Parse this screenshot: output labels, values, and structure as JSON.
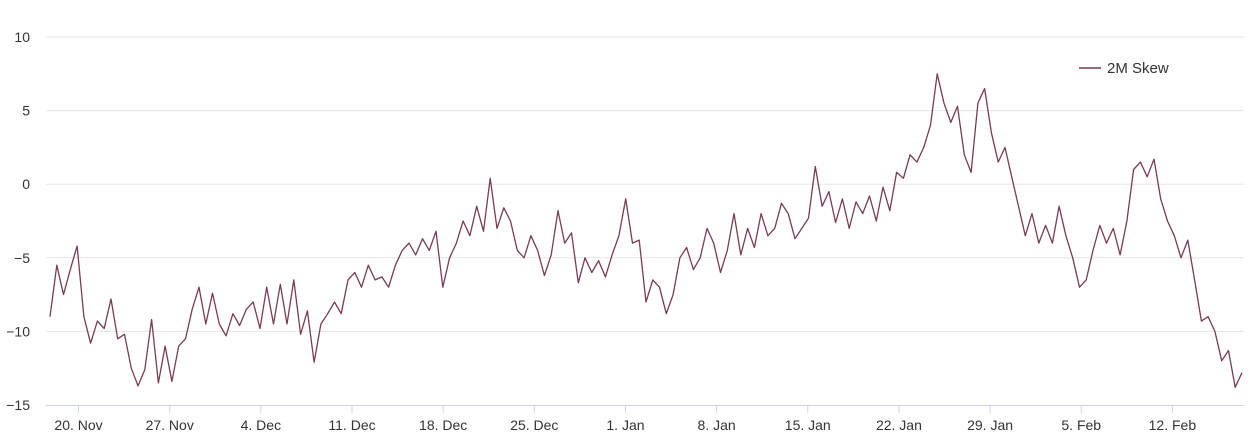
{
  "chart_data": {
    "type": "line",
    "title": "",
    "xlabel": "",
    "ylabel": "",
    "x_start": "2023-11-18",
    "x_end": "2024-02-17",
    "ylim": [
      -15,
      10
    ],
    "yticks": [
      {
        "value": 10,
        "label": "10"
      },
      {
        "value": 5,
        "label": "5"
      },
      {
        "value": 0,
        "label": "0"
      },
      {
        "value": -5,
        "label": "−5"
      },
      {
        "value": -10,
        "label": "−10"
      },
      {
        "value": -15,
        "label": "−15"
      }
    ],
    "xticks": [
      {
        "date": "2023-11-20",
        "label": "20. Nov"
      },
      {
        "date": "2023-11-27",
        "label": "27. Nov"
      },
      {
        "date": "2023-12-04",
        "label": "4. Dec"
      },
      {
        "date": "2023-12-11",
        "label": "11. Dec"
      },
      {
        "date": "2023-12-18",
        "label": "18. Dec"
      },
      {
        "date": "2023-12-25",
        "label": "25. Dec"
      },
      {
        "date": "2024-01-01",
        "label": "1. Jan"
      },
      {
        "date": "2024-01-08",
        "label": "8. Jan"
      },
      {
        "date": "2024-01-15",
        "label": "15. Jan"
      },
      {
        "date": "2024-01-22",
        "label": "22. Jan"
      },
      {
        "date": "2024-01-29",
        "label": "29. Jan"
      },
      {
        "date": "2024-02-05",
        "label": "5. Feb"
      },
      {
        "date": "2024-02-12",
        "label": "12. Feb"
      }
    ],
    "grid": true,
    "legend": {
      "position": "top-right"
    },
    "series": [
      {
        "name": "2M Skew",
        "color": "#7a3b55",
        "points": [
          [
            "2023-11-18",
            -9.0
          ],
          [
            "2023-11-19",
            -5.5
          ],
          [
            "2023-11-19",
            -7.5
          ],
          [
            "2023-11-20",
            -5.8
          ],
          [
            "2023-11-20",
            -4.2
          ],
          [
            "2023-11-21",
            -9.0
          ],
          [
            "2023-11-22",
            -10.8
          ],
          [
            "2023-11-22",
            -9.3
          ],
          [
            "2023-11-23",
            -9.8
          ],
          [
            "2023-11-24",
            -7.8
          ],
          [
            "2023-11-24",
            -10.5
          ],
          [
            "2023-11-25",
            -10.2
          ],
          [
            "2023-11-26",
            -12.5
          ],
          [
            "2023-11-26",
            -13.7
          ],
          [
            "2023-11-27",
            -12.6
          ],
          [
            "2023-11-27",
            -9.2
          ],
          [
            "2023-11-28",
            -13.5
          ],
          [
            "2023-11-28",
            -11.0
          ],
          [
            "2023-11-29",
            -13.4
          ],
          [
            "2023-11-29",
            -11.0
          ],
          [
            "2023-11-30",
            -10.5
          ],
          [
            "2023-11-30",
            -8.5
          ],
          [
            "2023-12-01",
            -7.0
          ],
          [
            "2023-12-01",
            -9.5
          ],
          [
            "2023-12-02",
            -7.4
          ],
          [
            "2023-12-02",
            -9.5
          ],
          [
            "2023-12-03",
            -10.3
          ],
          [
            "2023-12-03",
            -8.8
          ],
          [
            "2023-12-04",
            -9.6
          ],
          [
            "2023-12-05",
            -8.5
          ],
          [
            "2023-12-05",
            -8.0
          ],
          [
            "2023-12-06",
            -9.8
          ],
          [
            "2023-12-06",
            -7.0
          ],
          [
            "2023-12-07",
            -9.5
          ],
          [
            "2023-12-07",
            -6.8
          ],
          [
            "2023-12-08",
            -9.5
          ],
          [
            "2023-12-08",
            -6.5
          ],
          [
            "2023-12-09",
            -10.2
          ],
          [
            "2023-12-09",
            -8.6
          ],
          [
            "2023-12-10",
            -12.1
          ],
          [
            "2023-12-10",
            -9.5
          ],
          [
            "2023-12-11",
            -8.8
          ],
          [
            "2023-12-11",
            -8.0
          ],
          [
            "2023-12-12",
            -8.8
          ],
          [
            "2023-12-12",
            -6.5
          ],
          [
            "2023-12-13",
            -6.0
          ],
          [
            "2023-12-13",
            -7.0
          ],
          [
            "2023-12-14",
            -5.5
          ],
          [
            "2023-12-14",
            -6.5
          ],
          [
            "2023-12-15",
            -6.3
          ],
          [
            "2023-12-15",
            -7.0
          ],
          [
            "2023-12-16",
            -5.5
          ],
          [
            "2023-12-16",
            -4.5
          ],
          [
            "2023-12-17",
            -4.0
          ],
          [
            "2023-12-17",
            -4.8
          ],
          [
            "2023-12-18",
            -3.7
          ],
          [
            "2023-12-18",
            -4.5
          ],
          [
            "2023-12-19",
            -3.2
          ],
          [
            "2023-12-19",
            -7.0
          ],
          [
            "2023-12-20",
            -5.0
          ],
          [
            "2023-12-20",
            -4.0
          ],
          [
            "2023-12-21",
            -2.5
          ],
          [
            "2023-12-21",
            -3.5
          ],
          [
            "2023-12-22",
            -1.5
          ],
          [
            "2023-12-22",
            -3.2
          ],
          [
            "2023-12-23",
            0.4
          ],
          [
            "2023-12-23",
            -3.0
          ],
          [
            "2023-12-24",
            -1.6
          ],
          [
            "2023-12-24",
            -2.5
          ],
          [
            "2023-12-25",
            -4.5
          ],
          [
            "2023-12-26",
            -5.0
          ],
          [
            "2023-12-26",
            -3.5
          ],
          [
            "2023-12-27",
            -4.5
          ],
          [
            "2023-12-27",
            -6.2
          ],
          [
            "2023-12-28",
            -4.8
          ],
          [
            "2023-12-28",
            -1.8
          ],
          [
            "2023-12-29",
            -4.0
          ],
          [
            "2023-12-29",
            -3.3
          ],
          [
            "2023-12-30",
            -6.7
          ],
          [
            "2023-12-30",
            -5.0
          ],
          [
            "2023-12-31",
            -6.0
          ],
          [
            "2023-12-31",
            -5.2
          ],
          [
            "2024-01-01",
            -6.3
          ],
          [
            "2024-01-01",
            -4.8
          ],
          [
            "2024-01-02",
            -3.5
          ],
          [
            "2024-01-02",
            -1.0
          ],
          [
            "2024-01-03",
            -4.0
          ],
          [
            "2024-01-03",
            -3.8
          ],
          [
            "2024-01-04",
            -8.0
          ],
          [
            "2024-01-04",
            -6.5
          ],
          [
            "2024-01-05",
            -7.0
          ],
          [
            "2024-01-05",
            -8.8
          ],
          [
            "2024-01-06",
            -7.5
          ],
          [
            "2024-01-06",
            -5.0
          ],
          [
            "2024-01-07",
            -4.3
          ],
          [
            "2024-01-07",
            -5.8
          ],
          [
            "2024-01-08",
            -5.0
          ],
          [
            "2024-01-08",
            -3.0
          ],
          [
            "2024-01-09",
            -4.0
          ],
          [
            "2024-01-09",
            -6.0
          ],
          [
            "2024-01-10",
            -4.5
          ],
          [
            "2024-01-10",
            -2.0
          ],
          [
            "2024-01-11",
            -4.8
          ],
          [
            "2024-01-11",
            -3.0
          ],
          [
            "2024-01-12",
            -4.3
          ],
          [
            "2024-01-12",
            -2.0
          ],
          [
            "2024-01-13",
            -3.5
          ],
          [
            "2024-01-14",
            -3.0
          ],
          [
            "2024-01-14",
            -1.3
          ],
          [
            "2024-01-15",
            -2.0
          ],
          [
            "2024-01-15",
            -3.7
          ],
          [
            "2024-01-16",
            -3.0
          ],
          [
            "2024-01-16",
            -2.3
          ],
          [
            "2024-01-17",
            1.2
          ],
          [
            "2024-01-17",
            -1.5
          ],
          [
            "2024-01-18",
            -0.5
          ],
          [
            "2024-01-18",
            -2.6
          ],
          [
            "2024-01-19",
            -1.0
          ],
          [
            "2024-01-19",
            -3.0
          ],
          [
            "2024-01-20",
            -1.2
          ],
          [
            "2024-01-20",
            -2.0
          ],
          [
            "2024-01-21",
            -0.8
          ],
          [
            "2024-01-21",
            -2.5
          ],
          [
            "2024-01-22",
            -0.2
          ],
          [
            "2024-01-22",
            -1.8
          ],
          [
            "2024-01-23",
            0.8
          ],
          [
            "2024-01-23",
            0.4
          ],
          [
            "2024-01-24",
            2.0
          ],
          [
            "2024-01-24",
            1.5
          ],
          [
            "2024-01-25",
            2.5
          ],
          [
            "2024-01-25",
            4.0
          ],
          [
            "2024-01-26",
            7.5
          ],
          [
            "2024-01-26",
            5.5
          ],
          [
            "2024-01-27",
            4.2
          ],
          [
            "2024-01-27",
            5.3
          ],
          [
            "2024-01-28",
            2.0
          ],
          [
            "2024-01-28",
            0.8
          ],
          [
            "2024-01-29",
            5.5
          ],
          [
            "2024-01-29",
            6.5
          ],
          [
            "2024-01-30",
            3.5
          ],
          [
            "2024-01-30",
            1.5
          ],
          [
            "2024-01-31",
            2.5
          ],
          [
            "2024-01-31",
            0.5
          ],
          [
            "2024-02-01",
            -1.5
          ],
          [
            "2024-02-01",
            -3.5
          ],
          [
            "2024-02-02",
            -2.0
          ],
          [
            "2024-02-02",
            -4.0
          ],
          [
            "2024-02-03",
            -2.8
          ],
          [
            "2024-02-03",
            -4.0
          ],
          [
            "2024-02-04",
            -1.5
          ],
          [
            "2024-02-04",
            -3.5
          ],
          [
            "2024-02-05",
            -5.0
          ],
          [
            "2024-02-05",
            -7.0
          ],
          [
            "2024-02-06",
            -6.5
          ],
          [
            "2024-02-06",
            -4.5
          ],
          [
            "2024-02-07",
            -2.8
          ],
          [
            "2024-02-07",
            -4.0
          ],
          [
            "2024-02-08",
            -3.0
          ],
          [
            "2024-02-08",
            -4.8
          ],
          [
            "2024-02-09",
            -2.5
          ],
          [
            "2024-02-09",
            1.0
          ],
          [
            "2024-02-10",
            1.5
          ],
          [
            "2024-02-10",
            0.5
          ],
          [
            "2024-02-11",
            1.7
          ],
          [
            "2024-02-11",
            -1.0
          ],
          [
            "2024-02-12",
            -2.5
          ],
          [
            "2024-02-12",
            -3.5
          ],
          [
            "2024-02-13",
            -5.0
          ],
          [
            "2024-02-13",
            -3.8
          ],
          [
            "2024-02-14",
            -6.5
          ],
          [
            "2024-02-14",
            -9.3
          ],
          [
            "2024-02-15",
            -9.0
          ],
          [
            "2024-02-15",
            -10.0
          ],
          [
            "2024-02-16",
            -12.0
          ],
          [
            "2024-02-16",
            -11.3
          ],
          [
            "2024-02-17",
            -13.8
          ],
          [
            "2024-02-17",
            -12.8
          ]
        ]
      }
    ]
  }
}
